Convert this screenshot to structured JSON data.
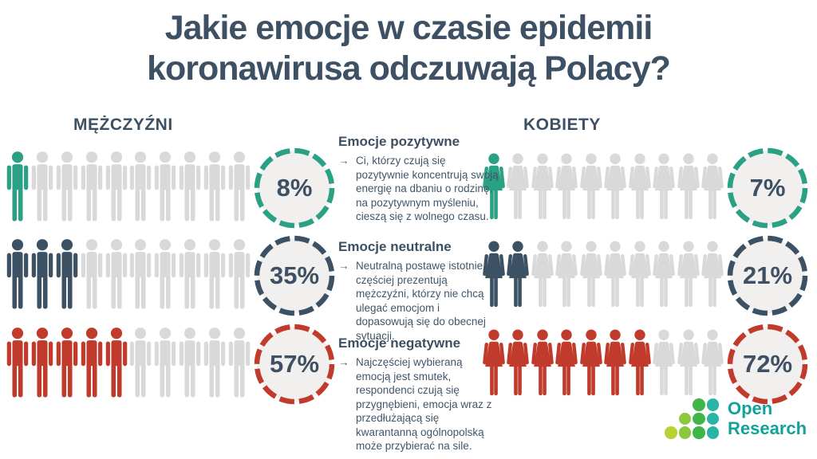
{
  "title": {
    "line1": "Jakie emocje w czasie epidemii",
    "line2": "koronawirusa odczuwają Polacy?"
  },
  "columns": {
    "men_label": "MĘŻCZYŹNI",
    "women_label": "KOBIETY"
  },
  "people_total": 10,
  "colors": {
    "positive": "#2aa084",
    "neutral": "#3c5164",
    "negative": "#c13b2c",
    "inactive": "#d9d9d9",
    "circle_fill": "#f1f0ee",
    "heading_text": "#3d4f63",
    "body_text": "#41566a",
    "title_text": "#3e5164",
    "logo_text": "#0fa39b"
  },
  "rows": [
    {
      "heading": "Emocje pozytywne",
      "arrow": "→",
      "body": "Ci, którzy czują się pozytywnie koncentrują swoją energię na dbaniu o rodzinę, na pozytywnym myśleniu, cieszą się z wolnego czasu.",
      "color": "#2aa084",
      "men_pct": "8%",
      "men_filled": 1,
      "women_pct": "7%",
      "women_filled": 1
    },
    {
      "heading": "Emocje neutralne",
      "arrow": "→",
      "body": "Neutralną postawę istotnie częściej prezentują mężczyźni, którzy nie chcą ulegać emocjom i dopasowują się do obecnej sytuacji.",
      "color": "#3c5164",
      "men_pct": "35%",
      "men_filled": 3,
      "women_pct": "21%",
      "women_filled": 2
    },
    {
      "heading": "Emocje negatywne",
      "arrow": "→",
      "body": "Najczęściej wybieraną emocją jest smutek, respondenci czują się przygnębieni, emocja wraz z przedłużającą się kwarantanną ogólnopolską może przybierać na sile.",
      "color": "#c13b2c",
      "men_pct": "57%",
      "men_filled": 5,
      "women_pct": "72%",
      "women_filled": 7
    }
  ],
  "logo": {
    "line1": "Open",
    "line2": "Research",
    "dot_rows": [
      [
        "#3fb54a",
        "#2ab4a5"
      ],
      [
        "#8dc63f",
        "#3fb54a",
        "#2ab4a5"
      ],
      [
        "#b5d334",
        "#8dc63f",
        "#3fb54a",
        "#2ab4a5"
      ]
    ]
  },
  "chart_data": {
    "type": "bar",
    "variant": "pictogram — 10 person icons per category, filled count ≈ percentage",
    "title": "Jakie emocje w czasie epidemii koronawirusa odczuwają Polacy?",
    "categories": [
      "Emocje pozytywne",
      "Emocje neutralne",
      "Emocje negatywne"
    ],
    "series": [
      {
        "name": "Mężczyźni",
        "values": [
          8,
          35,
          57
        ]
      },
      {
        "name": "Kobiety",
        "values": [
          7,
          21,
          72
        ]
      }
    ],
    "unit": "%",
    "icons_total_per_category": 10,
    "icons_filled": {
      "Mężczyźni": [
        1,
        3,
        5
      ],
      "Kobiety": [
        1,
        2,
        7
      ]
    },
    "category_colors": [
      "#2aa084",
      "#3c5164",
      "#c13b2c"
    ],
    "legend_position": "none"
  }
}
